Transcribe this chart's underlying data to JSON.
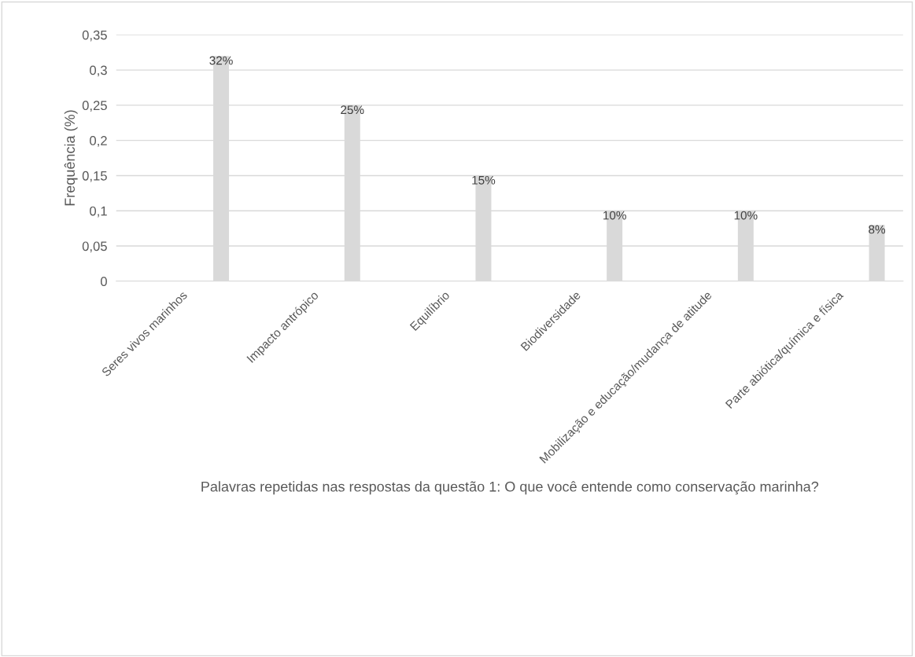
{
  "chart_data": {
    "type": "bar",
    "categories": [
      "Seres vivos marinhos",
      "Impacto antrópico",
      "Equilíbrio",
      "Biodiversidade",
      "Mobilização e educação/mudança de atitude",
      "Parte abiótica/química e física"
    ],
    "values": [
      0.32,
      0.25,
      0.15,
      0.1,
      0.1,
      0.08
    ],
    "value_labels": [
      "32%",
      "25%",
      "15%",
      "10%",
      "10%",
      "8%"
    ],
    "color": "#d9d9d9",
    "ylabel": "Frequência (%)",
    "xlabel": "Palavras repetidas nas respostas da questão 1: O que você entende como conservação marinha?",
    "ylim": [
      0,
      0.35
    ],
    "yticks": [
      {
        "value": 0,
        "label": "0"
      },
      {
        "value": 0.05,
        "label": "0,05"
      },
      {
        "value": 0.1,
        "label": "0,1"
      },
      {
        "value": 0.15,
        "label": "0,15"
      },
      {
        "value": 0.2,
        "label": "0,2"
      },
      {
        "value": 0.25,
        "label": "0,25"
      },
      {
        "value": 0.3,
        "label": "0,3"
      },
      {
        "value": 0.35,
        "label": "0,35"
      }
    ],
    "grid": "y"
  }
}
